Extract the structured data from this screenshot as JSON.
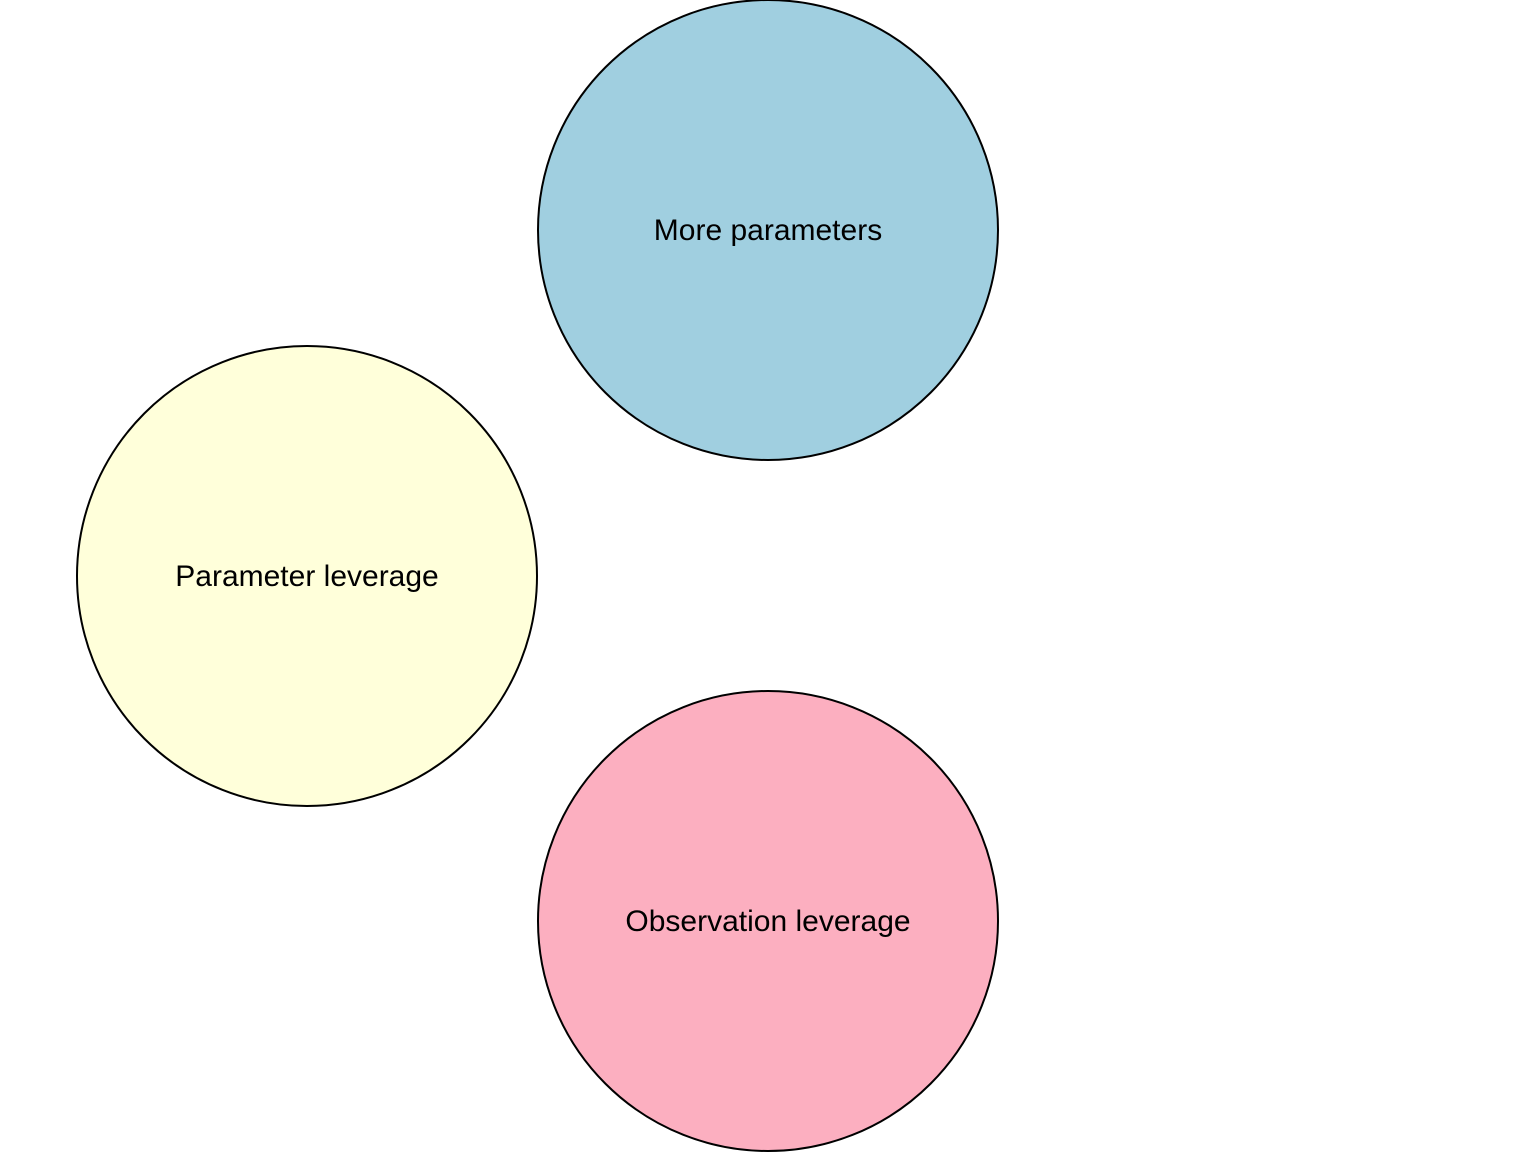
{
  "diagram": {
    "nodes": [
      {
        "id": "more-parameters",
        "label": "More parameters",
        "color": "#a0cfe0"
      },
      {
        "id": "parameter-leverage",
        "label": "Parameter leverage",
        "color": "#ffffda"
      },
      {
        "id": "observation-leverage",
        "label": "Observation leverage",
        "color": "#fcafc0"
      }
    ]
  }
}
